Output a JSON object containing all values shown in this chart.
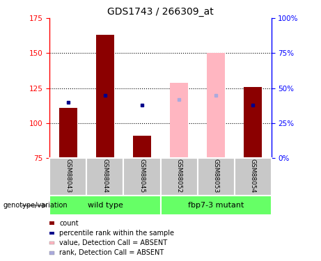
{
  "title": "GDS1743 / 266309_at",
  "samples": [
    "GSM88043",
    "GSM88044",
    "GSM88045",
    "GSM88052",
    "GSM88053",
    "GSM88054"
  ],
  "ylim_left": [
    75,
    175
  ],
  "ylim_right": [
    0,
    100
  ],
  "yticks_left": [
    75,
    100,
    125,
    150,
    175
  ],
  "yticks_right": [
    0,
    25,
    50,
    75,
    100
  ],
  "bar_base": 75,
  "absent_detection": [
    false,
    false,
    false,
    true,
    true,
    false
  ],
  "count_values": [
    111,
    163,
    91,
    null,
    null,
    126
  ],
  "count_values_absent": [
    null,
    null,
    null,
    129,
    150,
    null
  ],
  "rank_values": [
    115,
    120,
    113,
    null,
    null,
    113
  ],
  "rank_values_absent": [
    null,
    null,
    null,
    117,
    120,
    113
  ],
  "bar_color_present": "#8B0000",
  "bar_color_absent": "#FFB6C1",
  "rank_color_present": "#00008B",
  "rank_color_absent": "#AAAADD",
  "bar_width": 0.5,
  "legend_items": [
    {
      "label": "count",
      "color": "#8B0000"
    },
    {
      "label": "percentile rank within the sample",
      "color": "#00008B"
    },
    {
      "label": "value, Detection Call = ABSENT",
      "color": "#FFB6C1"
    },
    {
      "label": "rank, Detection Call = ABSENT",
      "color": "#AAAADD"
    }
  ],
  "group_area_color": "#66FF66",
  "sample_area_color": "#C8C8C8",
  "genotype_label": "genotype/variation",
  "title_fontsize": 10,
  "grid_lines": [
    100,
    125,
    150
  ],
  "wt_group_name": "wild type",
  "mut_group_name": "fbp7-3 mutant"
}
